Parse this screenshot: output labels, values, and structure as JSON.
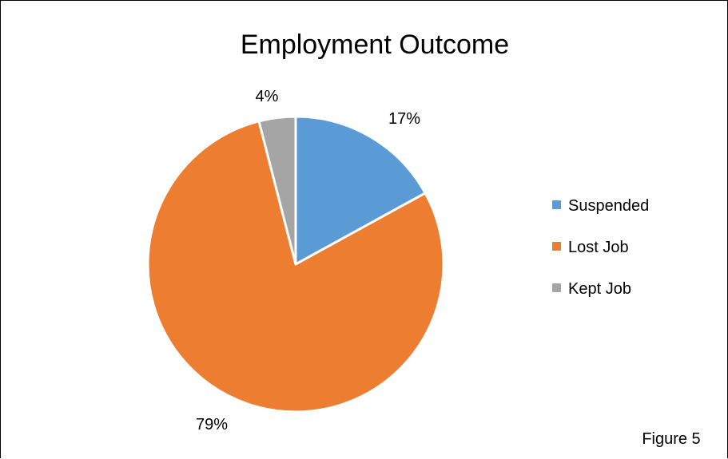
{
  "chart_data": {
    "type": "pie",
    "title": "Employment Outcome",
    "categories": [
      "Suspended",
      "Lost Job",
      "Kept Job"
    ],
    "values": [
      17,
      79,
      4
    ],
    "labels": [
      "17%",
      "79%",
      "4%"
    ],
    "colors": [
      "#5B9BD5",
      "#ED7D31",
      "#A5A5A5"
    ],
    "legend_position": "right",
    "start_angle": "12 o'clock",
    "direction": "clockwise"
  },
  "caption": "Figure 5"
}
